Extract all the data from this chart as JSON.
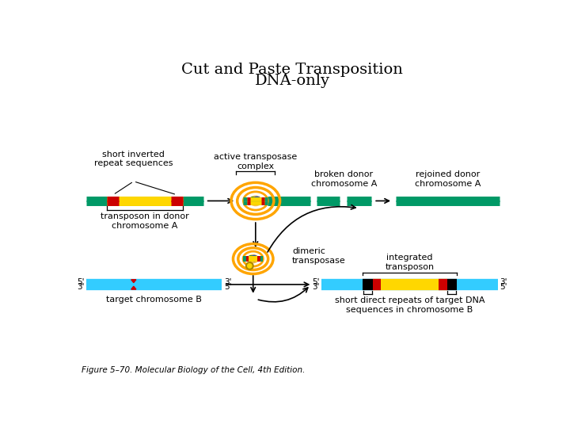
{
  "title_line1": "Cut and Paste Transposition",
  "title_line2": "DNA-only",
  "figure_caption": "Figure 5–70. Molecular Biology of the Cell, 4th Edition.",
  "bg_color": "#ffffff",
  "teal": "#009966",
  "yellow": "#FFD700",
  "red": "#CC0000",
  "cyan_dna": "#33CCFF",
  "orange": "#FFA500",
  "blue_body": "#6699CC",
  "green_spot": "#33BB33",
  "yellow_ball": "#FFD700"
}
